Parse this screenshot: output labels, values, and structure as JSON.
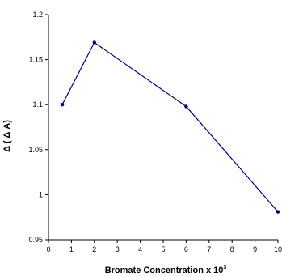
{
  "chart_data": {
    "type": "line",
    "xlabel": "Bromate Concentration x 10",
    "xlabel_superscript": "3",
    "ylabel": "Δ ( Δ A)",
    "xlim": [
      0,
      10
    ],
    "ylim": [
      0.95,
      1.2
    ],
    "x_ticks": [
      "0",
      "1",
      "2",
      "3",
      "4",
      "5",
      "6",
      "7",
      "8",
      "9",
      "10"
    ],
    "y_ticks": [
      "0.95",
      "1",
      "1.05",
      "1.1",
      "1.15",
      "1.2"
    ],
    "grid": false,
    "legend": "none",
    "series": [
      {
        "color": "#000080",
        "x": [
          0.6,
          2,
          6,
          10
        ],
        "y": [
          1.1,
          1.169,
          1.098,
          0.981
        ]
      }
    ]
  }
}
